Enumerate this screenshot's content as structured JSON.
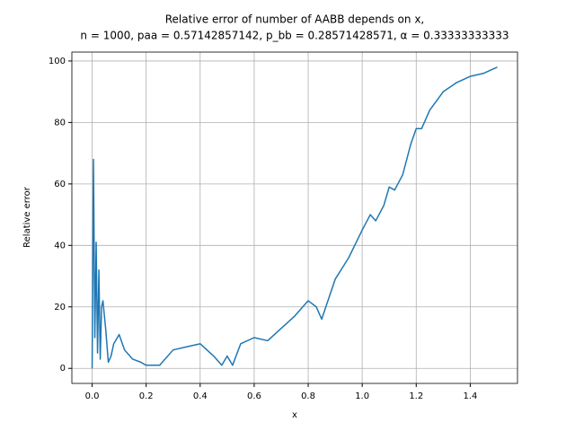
{
  "chart_data": {
    "type": "line",
    "title": "Relative error of number of AABB depends on x,",
    "subtitle": "n = 1000, paa = 0.57142857142, p_bb = 0.28571428571, α = 0.33333333333",
    "x_label": "x",
    "y_label": "Relative error",
    "x": [
      0,
      0.005,
      0.01,
      0.015,
      0.02,
      0.025,
      0.03,
      0.035,
      0.04,
      0.05,
      0.06,
      0.07,
      0.08,
      0.1,
      0.12,
      0.15,
      0.18,
      0.2,
      0.25,
      0.3,
      0.35,
      0.4,
      0.45,
      0.48,
      0.5,
      0.52,
      0.55,
      0.6,
      0.65,
      0.7,
      0.75,
      0.8,
      0.83,
      0.85,
      0.9,
      0.95,
      1.0,
      1.03,
      1.05,
      1.08,
      1.1,
      1.12,
      1.15,
      1.18,
      1.2,
      1.22,
      1.25,
      1.3,
      1.35,
      1.4,
      1.45,
      1.5
    ],
    "series": [
      {
        "color": "#1f77b4",
        "values": [
          0,
          68,
          10,
          41,
          5,
          32,
          3,
          20,
          22,
          13,
          2,
          4,
          8,
          11,
          6,
          3,
          2,
          1,
          1,
          6,
          7,
          8,
          4,
          1,
          4,
          1,
          8,
          10,
          9,
          13,
          17,
          22,
          20,
          16,
          29,
          36,
          45,
          50,
          48,
          53,
          59,
          58,
          63,
          73,
          78,
          78,
          84,
          90,
          93,
          95,
          96,
          98
        ]
      }
    ],
    "xlim": [
      -0.075,
      1.575
    ],
    "ylim": [
      -4.9,
      102.9
    ],
    "xticks": [
      {
        "value": 0,
        "label": "0.0"
      },
      {
        "value": 0.2,
        "label": "0.2"
      },
      {
        "value": 0.4,
        "label": "0.4"
      },
      {
        "value": 0.6,
        "label": "0.6"
      },
      {
        "value": 0.8,
        "label": "0.8"
      },
      {
        "value": 1.0,
        "label": "1.0"
      },
      {
        "value": 1.2,
        "label": "1.2"
      },
      {
        "value": 1.4,
        "label": "1.4"
      }
    ],
    "yticks": [
      0,
      20,
      40,
      60,
      80,
      100
    ],
    "grid": true
  }
}
